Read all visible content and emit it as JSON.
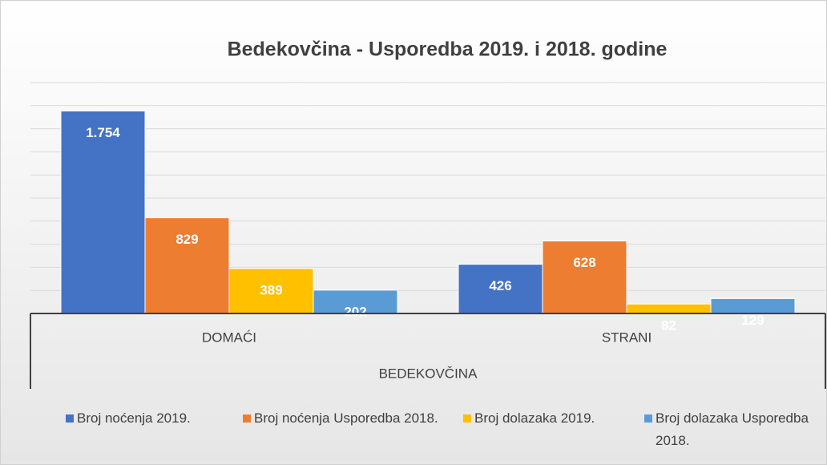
{
  "chart_data": {
    "type": "bar",
    "title": "Bedekovčina - Usporedba 2019. i 2018. godine",
    "categories": [
      "DOMAĆI",
      "STRANI"
    ],
    "x_group": "BEDEKOVČINA",
    "series": [
      {
        "name": "Broj noćenja 2019.",
        "color": "#4472c4",
        "values": [
          1754,
          426
        ],
        "value_labels": [
          "1.754",
          "426"
        ]
      },
      {
        "name": "Broj noćenja Usporedba 2018.",
        "color": "#ed7d31",
        "values": [
          829,
          628
        ]
      },
      {
        "name": "Broj dolazaka 2019.",
        "color": "#ffc000",
        "values": [
          389,
          82
        ]
      },
      {
        "name": "Broj dolazaka Usporedba 2018.",
        "color": "#5b9bd5",
        "values": [
          202,
          129
        ]
      }
    ],
    "ylim": [
      0,
      2000
    ],
    "yticks": [
      0,
      200,
      400,
      600,
      800,
      1000,
      1200,
      1400,
      1600,
      1800,
      2000
    ],
    "grid": true,
    "legend": "bottom"
  }
}
